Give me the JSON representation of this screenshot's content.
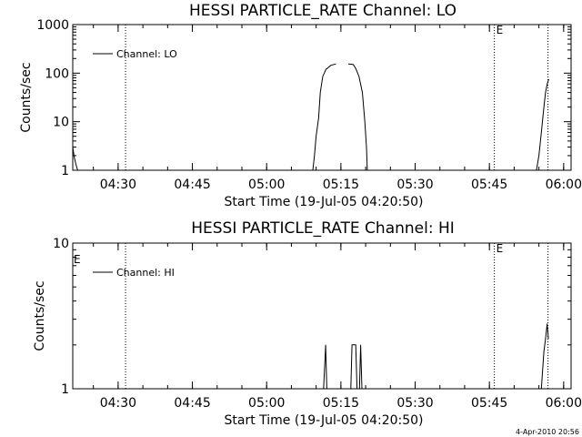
{
  "footer": {
    "timestamp": "4-Apr-2010 20:56"
  },
  "chart_data": [
    {
      "type": "line",
      "title": "HESSI PARTICLE_RATE Channel: LO",
      "xlabel": "Start Time (19-Jul-05 04:20:50)",
      "ylabel": "Counts/sec",
      "y_scale": "log",
      "ylim": [
        1,
        1000
      ],
      "xlim": [
        "04:20:50",
        "06:01:30"
      ],
      "x_ticks": [
        "04:30",
        "04:45",
        "05:00",
        "05:15",
        "05:30",
        "05:45",
        "06:00"
      ],
      "y_ticks": [
        "1",
        "10",
        "100",
        "1000"
      ],
      "legend": {
        "position": "top-left",
        "entries": [
          "Channel: LO"
        ]
      },
      "markers": [
        {
          "time": "04:31:30",
          "label": ""
        },
        {
          "time": "05:46:00",
          "label": "E"
        },
        {
          "time": "05:56:50",
          "label": ""
        }
      ],
      "start_marker_label": "",
      "series": [
        {
          "name": "Channel: LO",
          "points": [
            [
              "04:20:50",
              3
            ],
            [
              "04:21:10",
              1.8
            ],
            [
              "04:21:30",
              1.3
            ],
            [
              "04:21:50",
              1.0
            ],
            [
              "05:09:20",
              1.0
            ],
            [
              "05:09:40",
              2
            ],
            [
              "05:10:00",
              5
            ],
            [
              "05:10:30",
              12
            ],
            [
              "05:10:50",
              40
            ],
            [
              "05:11:20",
              85
            ],
            [
              "05:12:00",
              120
            ],
            [
              "05:13:00",
              145
            ],
            [
              "05:14:00",
              155
            ],
            [
              "05:16:30",
              155
            ],
            [
              "05:17:30",
              150
            ],
            [
              "05:18:00",
              125
            ],
            [
              "05:18:40",
              85
            ],
            [
              "05:19:20",
              40
            ],
            [
              "05:19:50",
              10
            ],
            [
              "05:20:10",
              3
            ],
            [
              "05:20:20",
              1.0
            ],
            [
              "05:54:30",
              1.0
            ],
            [
              "05:55:00",
              2
            ],
            [
              "05:55:30",
              6
            ],
            [
              "05:56:00",
              20
            ],
            [
              "05:56:20",
              40
            ],
            [
              "05:56:40",
              60
            ],
            [
              "05:57:00",
              75
            ]
          ]
        }
      ]
    },
    {
      "type": "line",
      "title": "HESSI PARTICLE_RATE Channel: HI",
      "xlabel": "Start Time (19-Jul-05 04:20:50)",
      "ylabel": "Counts/sec",
      "y_scale": "log",
      "ylim": [
        1,
        10
      ],
      "xlim": [
        "04:20:50",
        "06:01:30"
      ],
      "x_ticks": [
        "04:30",
        "04:45",
        "05:00",
        "05:15",
        "05:30",
        "05:45",
        "06:00"
      ],
      "y_ticks": [
        "1",
        "10"
      ],
      "legend": {
        "position": "top-left",
        "entries": [
          "Channel: HI"
        ]
      },
      "markers": [
        {
          "time": "04:31:30",
          "label": ""
        },
        {
          "time": "05:46:00",
          "label": "E"
        },
        {
          "time": "05:56:50",
          "label": ""
        }
      ],
      "start_marker_label": "E",
      "series": [
        {
          "name": "Channel: HI",
          "points": [
            [
              "05:11:30",
              1.0
            ],
            [
              "05:11:45",
              1.5
            ],
            [
              "05:11:55",
              2.0
            ],
            [
              "05:12:10",
              1.0
            ],
            [
              "05:17:00",
              1.0
            ],
            [
              "05:17:15",
              2.0
            ],
            [
              "05:18:00",
              2.0
            ],
            [
              "05:18:15",
              1.0
            ],
            [
              "05:18:45",
              1.0
            ],
            [
              "05:19:00",
              2.0
            ],
            [
              "05:19:15",
              1.0
            ],
            [
              "05:55:30",
              1.0
            ],
            [
              "05:56:00",
              1.8
            ],
            [
              "05:56:20",
              2.2
            ],
            [
              "05:56:40",
              2.8
            ],
            [
              "05:56:55",
              2.2
            ]
          ]
        }
      ]
    }
  ]
}
